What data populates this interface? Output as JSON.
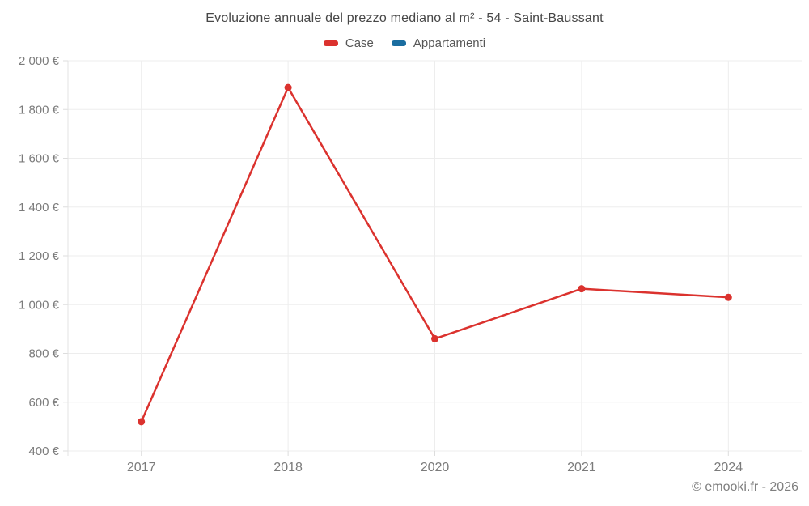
{
  "title": "Evoluzione annuale del prezzo mediano al m² - 54 - Saint-Baussant",
  "legend": {
    "items": [
      {
        "label": "Case",
        "color": "#db322e"
      },
      {
        "label": "Appartamenti",
        "color": "#1a6da0"
      }
    ]
  },
  "footer": {
    "copyright": "© emooki.fr - 2026"
  },
  "chart_data": {
    "type": "line",
    "title": "Evoluzione annuale del prezzo mediano al m² - 54 - Saint-Baussant",
    "categories": [
      "2017",
      "2018",
      "2020",
      "2021",
      "2024"
    ],
    "series": [
      {
        "name": "Case",
        "color": "#db322e",
        "values": [
          520,
          1890,
          860,
          1065,
          1030
        ]
      },
      {
        "name": "Appartamenti",
        "color": "#1a6da0",
        "values": []
      }
    ],
    "xlabel": "",
    "ylabel": "",
    "ylim": [
      400,
      2000
    ],
    "ytick_values": [
      400,
      600,
      800,
      1000,
      1200,
      1400,
      1600,
      1800,
      2000
    ],
    "ytick_labels": [
      "400 €",
      "600 €",
      "800 €",
      "1 000 €",
      "1 200 €",
      "1 400 €",
      "1 600 €",
      "1 800 €",
      "2 000 €"
    ],
    "grid": true,
    "legend_position": "top",
    "unit": "€"
  }
}
